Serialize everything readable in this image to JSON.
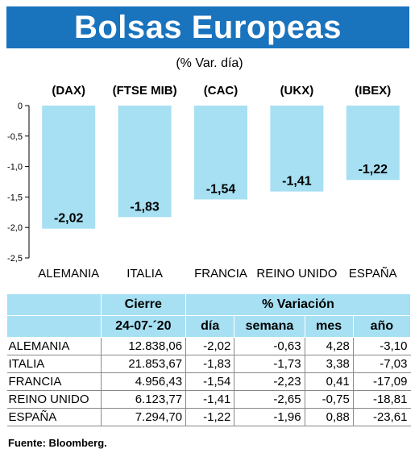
{
  "header": {
    "title": "Bolsas Europeas",
    "subtitle": "(% Var. día)"
  },
  "colors": {
    "header_bg": "#1a73bd",
    "bar": "#a6e0f2",
    "table_header": "#a6e0f2"
  },
  "chart_data": {
    "type": "bar",
    "index_labels": [
      "(DAX)",
      "(FTSE MIB)",
      "(CAC)",
      "(UKX)",
      "(IBEX)"
    ],
    "categories": [
      "ALEMANIA",
      "ITALIA",
      "FRANCIA",
      "REINO UNIDO",
      "ESPAÑA"
    ],
    "values": [
      -2.02,
      -1.83,
      -1.54,
      -1.41,
      -1.22
    ],
    "value_labels": [
      "-2,02",
      "-1,83",
      "-1,54",
      "-1,41",
      "-1,22"
    ],
    "yticks": [
      "0",
      "-0,5",
      "-1,0",
      "-1,5",
      "-2,0",
      "-2,5"
    ],
    "ytick_values": [
      0,
      -0.5,
      -1.0,
      -1.5,
      -2.0,
      -2.5
    ],
    "ylim": [
      -2.5,
      0
    ]
  },
  "table": {
    "group_headers": [
      "Cierre",
      "% Variación"
    ],
    "col_headers": [
      "24-07-´20",
      "día",
      "semana",
      "mes",
      "año"
    ],
    "rows": [
      {
        "name": "ALEMANIA",
        "cierre": "12.838,06",
        "dia": "-2,02",
        "semana": "-0,63",
        "mes": "4,28",
        "ano": "-3,10"
      },
      {
        "name": "ITALIA",
        "cierre": "21.853,67",
        "dia": "-1,83",
        "semana": "-1,73",
        "mes": "3,38",
        "ano": "-7,03"
      },
      {
        "name": "FRANCIA",
        "cierre": "4.956,43",
        "dia": "-1,54",
        "semana": "-2,23",
        "mes": "0,41",
        "ano": "-17,09"
      },
      {
        "name": "REINO UNIDO",
        "cierre": "6.123,77",
        "dia": "-1,41",
        "semana": "-2,65",
        "mes": "-0,75",
        "ano": "-18,81"
      },
      {
        "name": "ESPAÑA",
        "cierre": "7.294,70",
        "dia": "-1,22",
        "semana": "-1,96",
        "mes": "0,88",
        "ano": "-23,61"
      }
    ]
  },
  "source": "Fuente: Bloomberg."
}
